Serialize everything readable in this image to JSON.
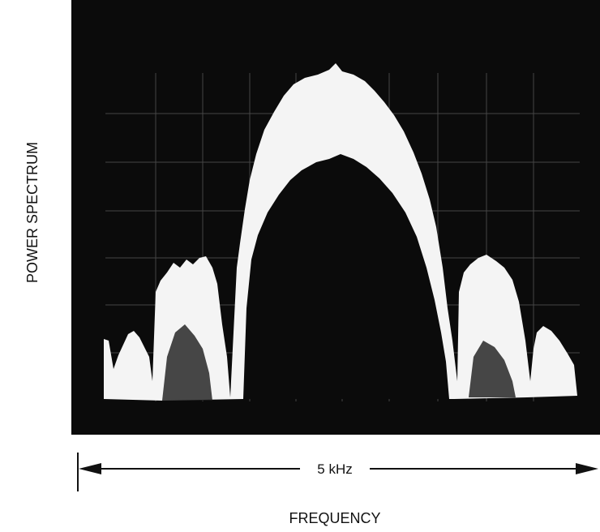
{
  "y_axis_label": "POWER SPECTRUM",
  "scale_label": "5 kHz",
  "x_axis_label": "FREQUENCY"
}
